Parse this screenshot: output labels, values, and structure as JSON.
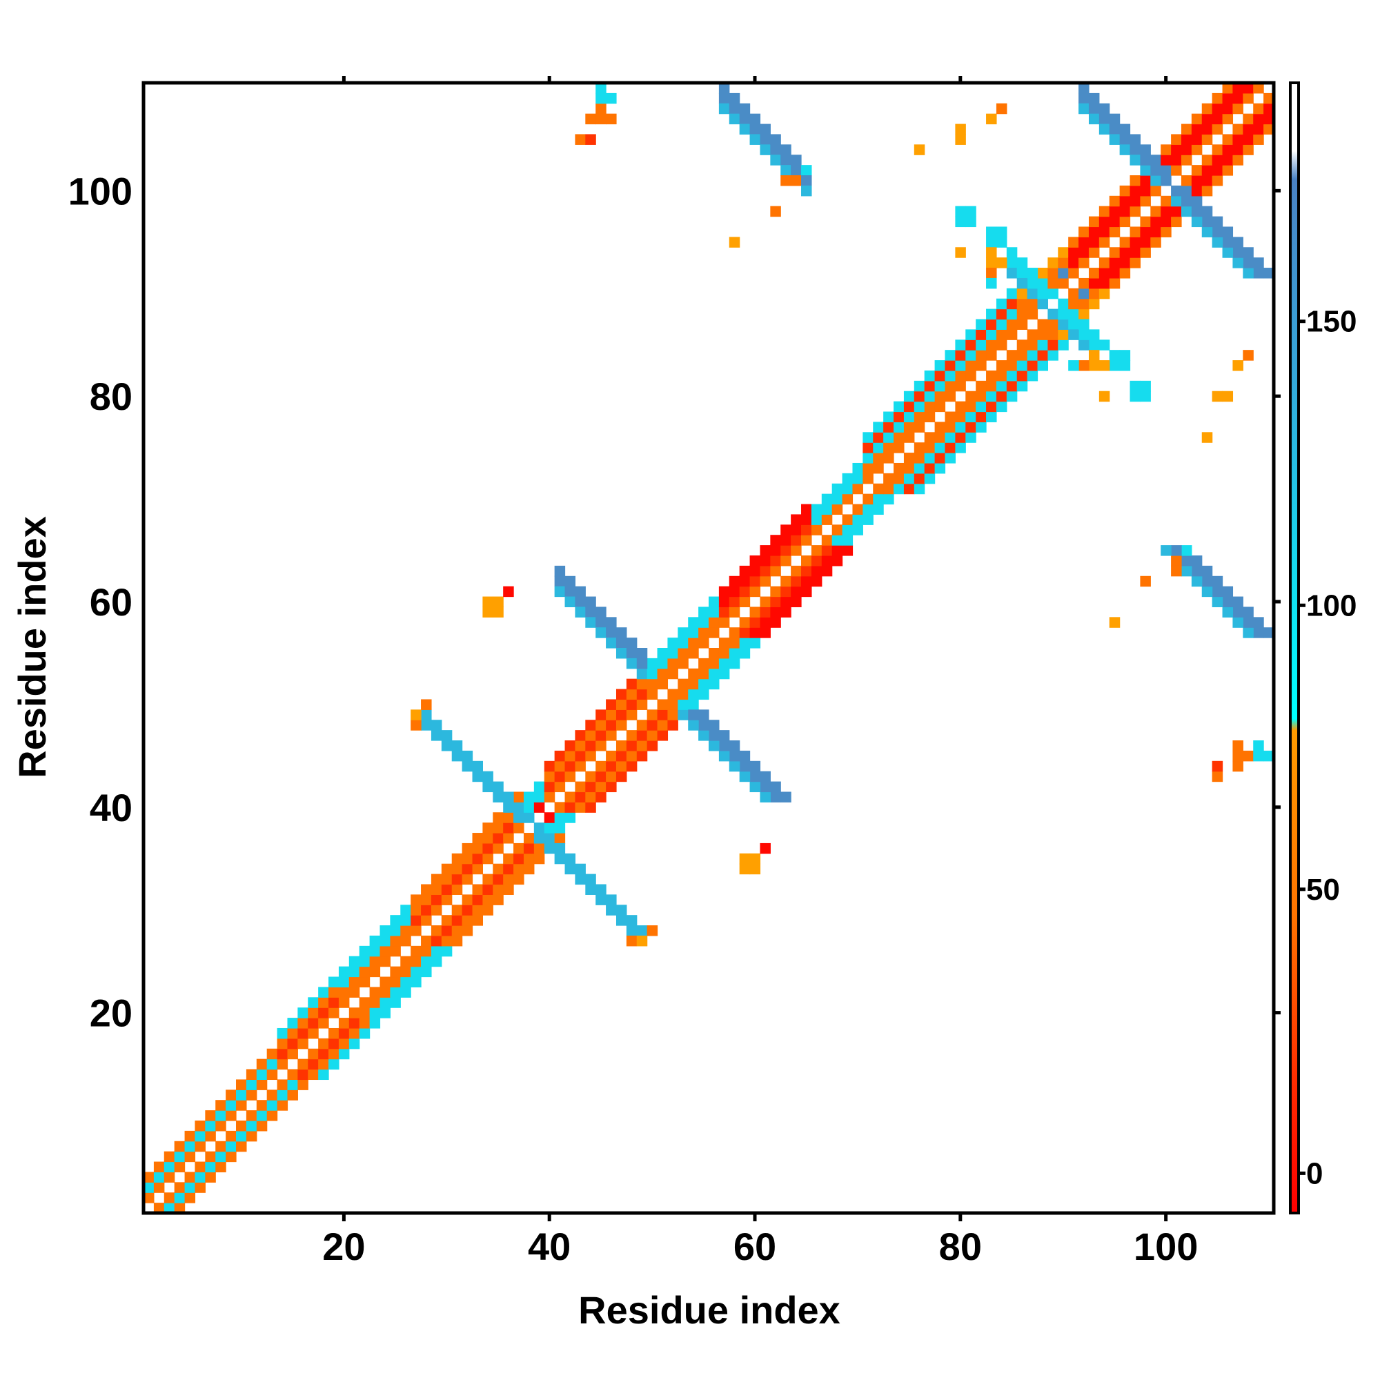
{
  "chart_data": {
    "type": "heatmap",
    "title": "",
    "xlabel": "Residue index",
    "ylabel": "Residue index",
    "xlim": [
      0.5,
      110.5
    ],
    "ylim": [
      0.5,
      110.5
    ],
    "grid": false,
    "symmetric": true,
    "xticks": [
      20,
      40,
      60,
      80,
      100
    ],
    "yticks": [
      20,
      40,
      60,
      80,
      100
    ],
    "xtick_labels": [
      "20",
      "40",
      "60",
      "80",
      "100"
    ],
    "ytick_labels": [
      "20",
      "40",
      "60",
      "80",
      "100"
    ],
    "colorbar": {
      "placement": "right",
      "range": [
        -7,
        192
      ],
      "ticks": [
        0,
        50,
        100,
        150
      ],
      "tick_labels": [
        "0",
        "50",
        "100",
        "150"
      ],
      "stops": [
        {
          "value": -7,
          "color": "#ff0000"
        },
        {
          "value": 15,
          "color": "#ff2a00"
        },
        {
          "value": 45,
          "color": "#ff7300"
        },
        {
          "value": 78,
          "color": "#ff9a00"
        },
        {
          "value": 80,
          "color": "#00ffff"
        },
        {
          "value": 110,
          "color": "#1ad4ec"
        },
        {
          "value": 140,
          "color": "#35a8da"
        },
        {
          "value": 175,
          "color": "#4a82c4"
        },
        {
          "value": 180,
          "color": "#ffffff"
        },
        {
          "value": 192,
          "color": "#ffffff"
        }
      ]
    },
    "value_codes": {
      "r": 5,
      "R": 20,
      "o": 40,
      "y": 70,
      "c": 95,
      "l": 125,
      "b": 160
    },
    "diagonal_bands": [
      {
        "from": 1,
        "to": 13,
        "offsets": [
          "o",
          "c",
          "o"
        ]
      },
      {
        "from": 14,
        "to": 19,
        "offsets": [
          "o",
          "R",
          "o",
          "c"
        ]
      },
      {
        "from": 20,
        "to": 26,
        "offsets": [
          "o",
          "o",
          "c",
          "c"
        ]
      },
      {
        "from": 27,
        "to": 37,
        "offsets": [
          "o",
          "R",
          "o",
          "o"
        ]
      },
      {
        "from": 38,
        "to": 39,
        "offsets": [
          "r",
          "c",
          "c"
        ]
      },
      {
        "from": 40,
        "to": 49,
        "offsets": [
          "o",
          "R",
          "o",
          "R"
        ]
      },
      {
        "from": 50,
        "to": 56,
        "offsets": [
          "o",
          "o",
          "c",
          "c"
        ]
      },
      {
        "from": 57,
        "to": 65,
        "offsets": [
          "o",
          "R",
          "r",
          "r"
        ]
      },
      {
        "from": 66,
        "to": 70,
        "offsets": [
          "o",
          "c",
          "c"
        ]
      },
      {
        "from": 71,
        "to": 85,
        "offsets": [
          "o",
          "o",
          "c",
          "R",
          "c"
        ]
      },
      {
        "from": 86,
        "to": 90,
        "offsets": [
          "o",
          "o",
          "o",
          "y"
        ]
      },
      {
        "from": 91,
        "to": 100,
        "offsets": [
          "o",
          "r",
          "r",
          "o"
        ]
      },
      {
        "from": 101,
        "to": 109,
        "offsets": [
          "o",
          "r",
          "r",
          "o"
        ]
      }
    ],
    "antiparallel_strips": [
      {
        "x": [
          28,
          38
        ],
        "y_start": 49,
        "width": 2,
        "code": "l"
      },
      {
        "x": [
          41,
          49
        ],
        "y_start": 63,
        "width": 3,
        "code": "b"
      },
      {
        "x": [
          57,
          65
        ],
        "y_start": 110,
        "width": 3,
        "code": "b"
      },
      {
        "x": [
          92,
          100
        ],
        "y_start": 110,
        "width": 3,
        "code": "b"
      },
      {
        "x": [
          85,
          92
        ],
        "y_start": 94,
        "width": 3,
        "code": "c"
      }
    ],
    "cells": [
      [
        27,
        48,
        "o"
      ],
      [
        28,
        50,
        "o"
      ],
      [
        27,
        49,
        "y"
      ],
      [
        43,
        105,
        "o"
      ],
      [
        44,
        105,
        "R"
      ],
      [
        44,
        107,
        "o"
      ],
      [
        45,
        107,
        "o"
      ],
      [
        46,
        107,
        "o"
      ],
      [
        45,
        108,
        "o"
      ],
      [
        45,
        109,
        "c"
      ],
      [
        45,
        110,
        "c"
      ],
      [
        46,
        109,
        "c"
      ],
      [
        34,
        59,
        "y"
      ],
      [
        35,
        59,
        "y"
      ],
      [
        34,
        60,
        "y"
      ],
      [
        35,
        60,
        "y"
      ],
      [
        36,
        61,
        "r"
      ],
      [
        58,
        95,
        "y"
      ],
      [
        62,
        98,
        "o"
      ],
      [
        63,
        101,
        "o"
      ],
      [
        64,
        101,
        "o"
      ],
      [
        65,
        102,
        "c"
      ],
      [
        76,
        104,
        "y"
      ],
      [
        80,
        105,
        "y"
      ],
      [
        80,
        106,
        "y"
      ],
      [
        83,
        107,
        "y"
      ],
      [
        84,
        108,
        "o"
      ],
      [
        80,
        97,
        "c"
      ],
      [
        80,
        98,
        "c"
      ],
      [
        81,
        97,
        "c"
      ],
      [
        81,
        98,
        "c"
      ],
      [
        83,
        95,
        "c"
      ],
      [
        84,
        95,
        "c"
      ],
      [
        83,
        96,
        "c"
      ],
      [
        84,
        96,
        "c"
      ],
      [
        83,
        94,
        "y"
      ],
      [
        83,
        93,
        "y"
      ],
      [
        84,
        93,
        "y"
      ],
      [
        83,
        92,
        "o"
      ],
      [
        83,
        91,
        "c"
      ],
      [
        80,
        94,
        "y"
      ],
      [
        90,
        92,
        "b"
      ],
      [
        91,
        91,
        "c"
      ]
    ]
  }
}
